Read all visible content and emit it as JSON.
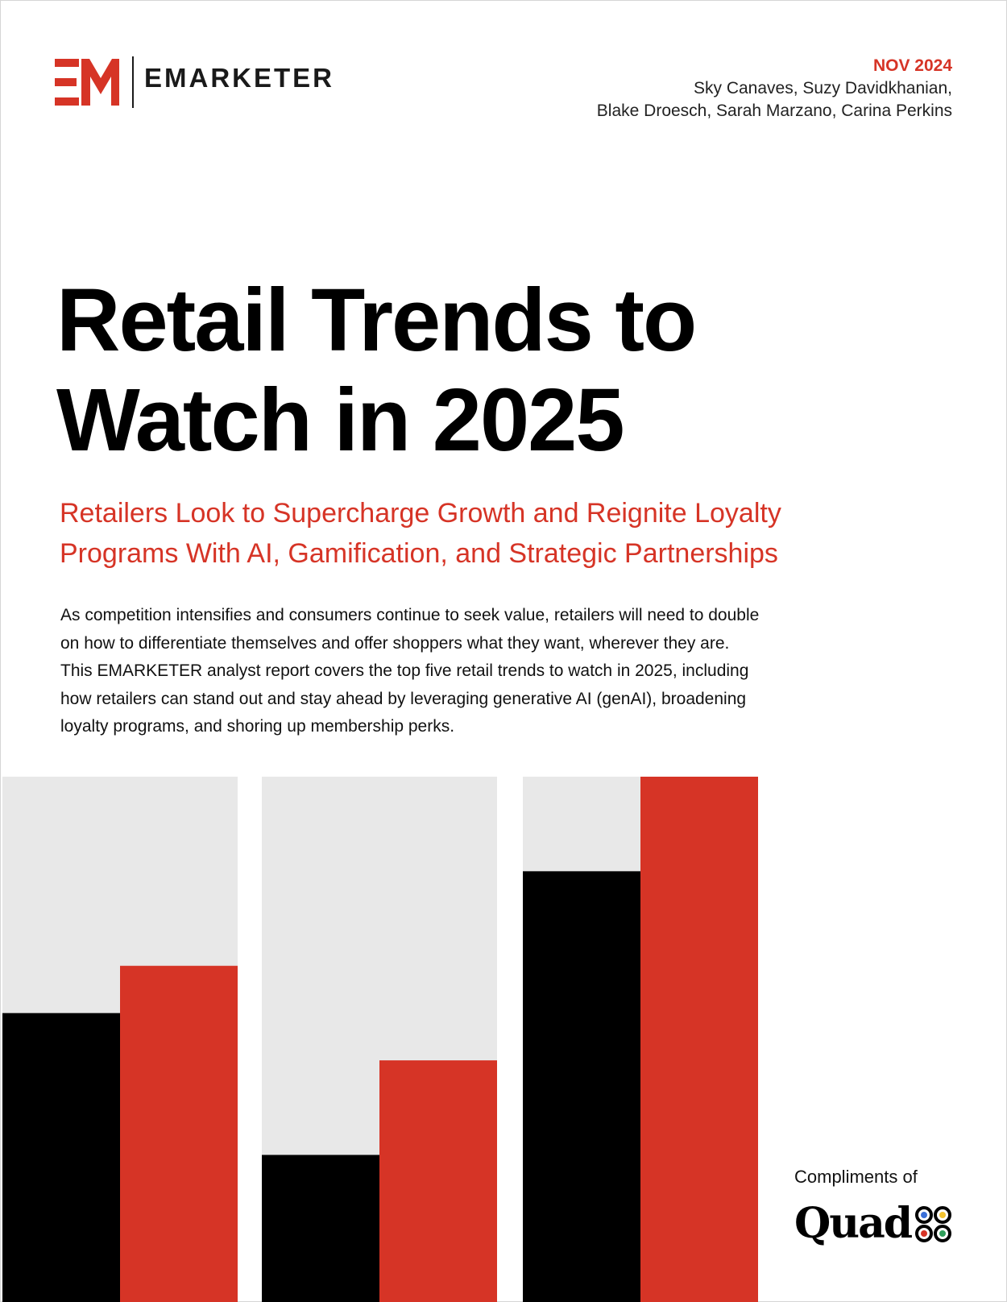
{
  "brand": {
    "mark": "EM",
    "wordmark": "EMARKETER",
    "accent_color": "#d63426"
  },
  "meta": {
    "date": "NOV 2024",
    "authors_line1": "Sky Canaves, Suzy Davidkhanian,",
    "authors_line2": "Blake Droesch, Sarah Marzano, Carina Perkins"
  },
  "title": {
    "line1": "Retail Trends to",
    "line2": "Watch in 2025"
  },
  "subtitle": {
    "line1": "Retailers Look to Supercharge Growth and Reignite Loyalty",
    "line2": "Programs With AI, Gamification, and Strategic Partnerships"
  },
  "summary": {
    "line1": "As competition intensifies and consumers continue to seek value, retailers will need to double",
    "line2": "on how to differentiate themselves and offer shoppers what they want, wherever they are.",
    "line3": "This EMARKETER analyst report covers the top five retail trends to watch in 2025, including",
    "line4": "how retailers can stand out and stay ahead by leveraging generative AI (genAI), broadening",
    "line5": "loyalty programs, and shoring up membership perks."
  },
  "sponsor": {
    "label": "Compliments of",
    "name": "Quad"
  },
  "chart_data": {
    "type": "bar",
    "decorative": true,
    "series": [
      {
        "color": "#000000",
        "values": [
          0.55,
          0.28,
          0.82
        ]
      },
      {
        "color": "#d63426",
        "values": [
          0.64,
          0.46,
          1.0
        ]
      }
    ],
    "background_color": "#e8e8e8",
    "ylim": [
      0,
      1
    ]
  }
}
